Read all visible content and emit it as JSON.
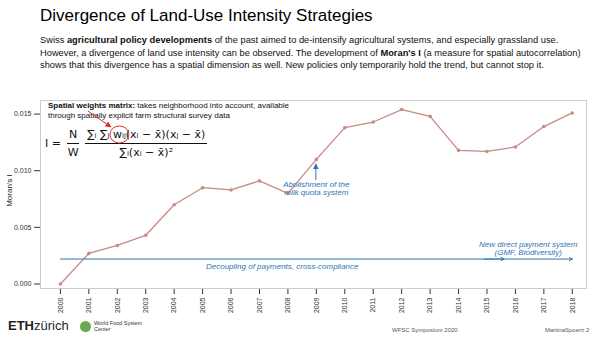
{
  "title": "Divergence of Land-Use Intensity Strategies",
  "body": [
    {
      "text": "Swiss "
    },
    {
      "text": "agricultural policy developments",
      "bold": true
    },
    {
      "text": " of the past aimed to de-intensify agricultural systems, and especially grassland use. However, a divergence of land use intensity can be observed. The development of "
    },
    {
      "text": "Moran's I",
      "bold": true
    },
    {
      "text": " (a measure for spatial autocorrelation) shows that this divergence has a spatial dimension as well. New policies only temporarily hold the trend, but cannot stop it."
    }
  ],
  "note": [
    {
      "text": "Spatial weights matrix:",
      "bold": true
    },
    {
      "text": " takes neighborhood into account, available through spatially explicit farm structural survey data"
    }
  ],
  "formula": {
    "lhs": "I =",
    "factor": [
      "N",
      "W"
    ],
    "numerator": "∑ᵢ ∑ⱼ wᵢⱼ(xᵢ − x̄)(xⱼ − x̄)",
    "denominator": "∑ᵢ(xᵢ − x̄)²",
    "circled": "wᵢⱼ",
    "color": "#d9302c"
  },
  "footer": {
    "logo": [
      "ETH",
      "zürich"
    ],
    "partner": [
      "World Food System",
      "Center"
    ],
    "event": "WFSC Symposium 2020",
    "page": "MartinaSpoerri 2"
  },
  "chart_data": {
    "type": "line",
    "ylabel": "Moran's I",
    "x": [
      2000,
      2001,
      2002,
      2003,
      2004,
      2005,
      2006,
      2007,
      2008,
      2009,
      2010,
      2011,
      2012,
      2013,
      2014,
      2015,
      2016,
      2017,
      2018
    ],
    "values": [
      0.0,
      0.0027,
      0.0034,
      0.0043,
      0.007,
      0.0085,
      0.0083,
      0.0091,
      0.008,
      0.011,
      0.0138,
      0.0143,
      0.0154,
      0.0148,
      0.0118,
      0.0117,
      0.0121,
      0.0139,
      0.0151
    ],
    "color": "#c98a84",
    "marker": "circle",
    "xlim": [
      1999.3,
      2018.5
    ],
    "xticks": [
      2000,
      2001,
      2002,
      2003,
      2004,
      2005,
      2006,
      2007,
      2008,
      2009,
      2010,
      2011,
      2012,
      2013,
      2014,
      2015,
      2016,
      2017,
      2018
    ],
    "ylim": [
      -0.0004,
      0.0162
    ],
    "yticks": [
      {
        "value": 0,
        "label": "0.000"
      },
      {
        "value": 0.005,
        "label": "0.005"
      },
      {
        "value": 0.01,
        "label": "0.010"
      },
      {
        "value": 0.015,
        "label": "0.015"
      }
    ],
    "annotations": [
      {
        "text": "Abolishment of the\nmilk quota system",
        "x": 2009,
        "color": "#2e75b6"
      }
    ],
    "periods": [
      {
        "label": "Decoupling of payments, cross-compliance",
        "start": 2000,
        "end": 2015.6,
        "y": 0.0022,
        "color": "#2e75b6"
      },
      {
        "label": "New direct payment system\n(GMF, Biodiversity)",
        "start": 2014.9,
        "end": 2018,
        "y": 0.0022,
        "color": "#2e75b6"
      }
    ]
  }
}
